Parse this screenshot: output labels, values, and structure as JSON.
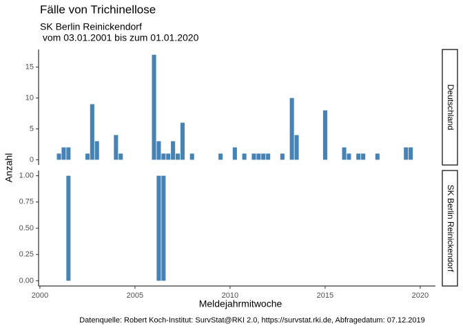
{
  "title": "Fälle von Trichinellose",
  "subtitle": [
    "SK Berlin Reinickendorf",
    " vom 03.01.2001 bis zum 01.01.2020"
  ],
  "y_label": "Anzahl",
  "x_label": "Meldejahrmitwoche",
  "caption": "Datenquelle: Robert Koch-Institut: SurvStat@RKI 2.0, https://survstat.rki.de, Abfragedatum: 07.12.2019",
  "chart_data": [
    {
      "type": "bar",
      "facet": "Deutschland",
      "color": "#4682b4",
      "x": [
        2001.0,
        2001.25,
        2001.5,
        2002.5,
        2002.75,
        2003.0,
        2004.0,
        2004.25,
        2006.0,
        2006.25,
        2006.5,
        2006.75,
        2007.0,
        2007.25,
        2007.5,
        2008.0,
        2009.5,
        2010.25,
        2010.75,
        2011.25,
        2011.5,
        2011.75,
        2012.0,
        2012.75,
        2013.25,
        2013.5,
        2015.0,
        2016.0,
        2016.25,
        2016.75,
        2017.0,
        2017.75,
        2019.25,
        2019.5
      ],
      "values": [
        1,
        2,
        2,
        1,
        9,
        3,
        4,
        1,
        17,
        3,
        1,
        1,
        3,
        1,
        6,
        1,
        1,
        2,
        1,
        1,
        1,
        1,
        1,
        1,
        10,
        4,
        8,
        2,
        1,
        1,
        1,
        1,
        2,
        2
      ],
      "xlim": [
        1999.93,
        2020.8
      ],
      "ylim": [
        -0.85,
        17.85
      ],
      "yticks": [
        0,
        5,
        10,
        15
      ]
    },
    {
      "type": "bar",
      "facet": "SK Berlin Reinickendorf",
      "color": "#4682b4",
      "x": [
        2001.5,
        2006.25,
        2006.5
      ],
      "values": [
        1,
        1,
        1
      ],
      "xlim": [
        1999.93,
        2020.8
      ],
      "ylim": [
        -0.05,
        1.05
      ],
      "yticks": [
        {
          "value": 0,
          "label": "0.00"
        },
        {
          "value": 0.25,
          "label": "0.25"
        },
        {
          "value": 0.5,
          "label": "0.50"
        },
        {
          "value": 0.75,
          "label": "0.75"
        },
        {
          "value": 1,
          "label": "1.00"
        }
      ],
      "xticks": [
        2000,
        2005,
        2010,
        2015,
        2020
      ]
    }
  ]
}
